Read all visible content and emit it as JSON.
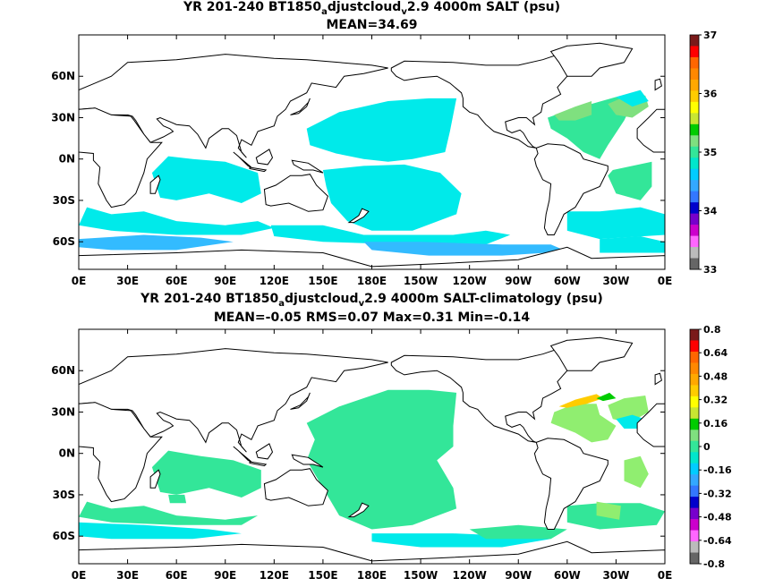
{
  "panels": [
    {
      "title_pre": "YR 201-240 BT1850",
      "title_sub1": "a",
      "title_mid": "djustcloud",
      "title_sub2": "v",
      "title_post": "2.9 4000m SALT (psu)",
      "subtitle": "MEAN=34.69"
    },
    {
      "title_pre": "YR 201-240 BT1850",
      "title_sub1": "a",
      "title_mid": "djustcloud",
      "title_sub2": "v",
      "title_post": "2.9 4000m SALT-climatology (psu)",
      "subtitle": "MEAN=-0.05   RMS=0.07   Max=0.31   Min=-0.14"
    }
  ],
  "chart_data": [
    {
      "type": "heatmap",
      "title": "YR 201-240 BT1850adjustcloudv2.9 4000m SALT (psu)",
      "subtitle": "MEAN=34.69",
      "xlabel": "",
      "ylabel": "",
      "x_ticks": [
        "0E",
        "30E",
        "60E",
        "90E",
        "120E",
        "150E",
        "180E",
        "150W",
        "120W",
        "90W",
        "60W",
        "30W",
        "0E"
      ],
      "y_ticks": [
        "60N",
        "30N",
        "0N",
        "30S",
        "60S"
      ],
      "xlim": [
        0,
        360
      ],
      "ylim": [
        -80,
        90
      ],
      "colorbar": {
        "ticks": [
          "37",
          "36",
          "35",
          "34",
          "33"
        ],
        "vmin": 33,
        "vmax": 37,
        "colors": [
          "#7a1a1a",
          "#ff0000",
          "#ff6600",
          "#ff8800",
          "#ffa800",
          "#ffcc00",
          "#ffff00",
          "#c8e632",
          "#00cc00",
          "#7fe07f",
          "#33e699",
          "#00e6cc",
          "#00ccff",
          "#33a8ff",
          "#3377ff",
          "#0000cc",
          "#7700cc",
          "#cc00cc",
          "#ff66ff",
          "#bbbbbb",
          "#666666"
        ]
      },
      "regions": [
        {
          "name": "North Pacific",
          "value": 34.65,
          "color": "#00e6e6"
        },
        {
          "name": "South Pacific",
          "value": 34.7,
          "color": "#00e6e6"
        },
        {
          "name": "Indian Ocean",
          "value": 34.72,
          "color": "#00e6e6"
        },
        {
          "name": "Southern Ocean",
          "value": 34.6,
          "color": "#33bbff"
        },
        {
          "name": "North Atlantic",
          "value": 34.95,
          "color": "#33e699"
        },
        {
          "name": "South Atlantic",
          "value": 34.85,
          "color": "#33e699"
        }
      ]
    },
    {
      "type": "heatmap",
      "title": "YR 201-240 BT1850adjustcloudv2.9 4000m SALT-climatology (psu)",
      "subtitle": "MEAN=-0.05   RMS=0.07   Max=0.31   Min=-0.14",
      "x_ticks": [
        "0E",
        "30E",
        "60E",
        "90E",
        "120E",
        "150E",
        "180E",
        "150W",
        "120W",
        "90W",
        "60W",
        "30W",
        "0E"
      ],
      "y_ticks": [
        "60N",
        "30N",
        "0N",
        "30S",
        "60S"
      ],
      "xlim": [
        0,
        360
      ],
      "ylim": [
        -80,
        90
      ],
      "colorbar": {
        "ticks": [
          "0.8",
          "0.64",
          "0.48",
          "0.32",
          "0.16",
          "0",
          "-0.16",
          "-0.32",
          "-0.48",
          "-0.64",
          "-0.8"
        ],
        "vmin": -0.8,
        "vmax": 0.8,
        "colors": [
          "#7a1a1a",
          "#ff0000",
          "#ff6600",
          "#ff8800",
          "#ffa800",
          "#ffcc00",
          "#ffff00",
          "#c8e632",
          "#00cc00",
          "#7fe07f",
          "#33e699",
          "#00e6cc",
          "#00ccff",
          "#33a8ff",
          "#3377ff",
          "#0000cc",
          "#7700cc",
          "#cc00cc",
          "#ff66ff",
          "#bbbbbb",
          "#666666"
        ]
      },
      "regions": [
        {
          "name": "Pacific",
          "value": -0.05,
          "color": "#33e699"
        },
        {
          "name": "Indian Ocean",
          "value": -0.05,
          "color": "#33e699"
        },
        {
          "name": "Southern Ocean",
          "value": -0.1,
          "color": "#00e6e6"
        },
        {
          "name": "North Atlantic",
          "value": 0.08,
          "color": "#90ee70"
        },
        {
          "name": "Gulf Stream",
          "value": 0.3,
          "color": "#ffcc00"
        }
      ]
    }
  ]
}
